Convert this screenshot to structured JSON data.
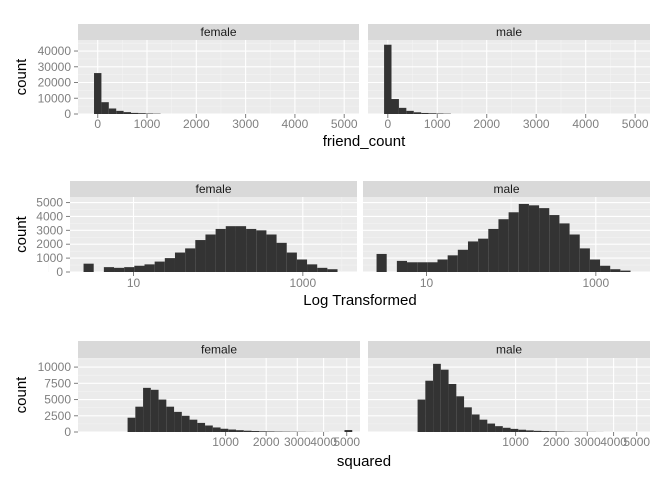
{
  "colors": {
    "panel_bg": "#ebebeb",
    "strip_bg": "#d9d9d9",
    "grid_major": "#ffffff",
    "grid_minor": "#f4f4f4",
    "bar": "#333333",
    "tick_text": "#7f7f7f"
  },
  "chart_data": [
    {
      "type": "histogram",
      "facet": "gender",
      "xlabel": "friend_count",
      "ylabel": "count",
      "xscale": "linear",
      "xlim": [
        -400,
        5300
      ],
      "ylim": [
        0,
        47000
      ],
      "xticks": [
        0,
        1000,
        2000,
        3000,
        4000,
        5000
      ],
      "xtick_labels": [
        "0",
        "1000",
        "2000",
        "3000",
        "4000",
        "5000"
      ],
      "yticks": [
        0,
        10000,
        20000,
        30000,
        40000
      ],
      "ytick_labels": [
        "0",
        "10000",
        "20000",
        "30000",
        "40000"
      ],
      "bin_edges": [
        -75,
        75,
        225,
        375,
        525,
        675,
        825,
        975,
        1125,
        1275
      ],
      "facets": [
        {
          "label": "female",
          "values": [
            26000,
            7500,
            3500,
            2000,
            1200,
            700,
            500,
            300,
            200
          ]
        },
        {
          "label": "male",
          "values": [
            44000,
            9500,
            3900,
            2000,
            1100,
            650,
            450,
            300,
            200
          ]
        }
      ]
    },
    {
      "type": "histogram",
      "facet": "gender",
      "xlabel": "Log Transformed",
      "ylabel": "count",
      "xscale": "log10",
      "xlim": [
        0.25,
        3.64
      ],
      "ylim": [
        0,
        5400
      ],
      "xticks": [
        1,
        3
      ],
      "xtick_labels": [
        "10",
        "1000"
      ],
      "yticks": [
        0,
        1000,
        2000,
        3000,
        4000,
        5000
      ],
      "ytick_labels": [
        "0",
        "1000",
        "2000",
        "3000",
        "4000",
        "5000"
      ],
      "bin_edges": [
        0.41,
        0.53,
        0.65,
        0.77,
        0.89,
        1.01,
        1.13,
        1.25,
        1.37,
        1.49,
        1.61,
        1.73,
        1.85,
        1.97,
        2.09,
        2.21,
        2.33,
        2.45,
        2.57,
        2.69,
        2.81,
        2.93,
        3.05,
        3.17,
        3.29,
        3.41
      ],
      "facets": [
        {
          "label": "female",
          "values": [
            600,
            0,
            350,
            300,
            350,
            450,
            550,
            750,
            1000,
            1400,
            1700,
            2300,
            2700,
            3100,
            3300,
            3300,
            3100,
            3000,
            2700,
            2100,
            1400,
            900,
            550,
            300,
            200
          ]
        },
        {
          "label": "male",
          "values": [
            1300,
            0,
            800,
            700,
            700,
            700,
            900,
            1200,
            1600,
            2200,
            2400,
            3100,
            3800,
            4300,
            4900,
            4800,
            4600,
            4100,
            3500,
            2700,
            1700,
            900,
            450,
            200,
            100
          ]
        }
      ]
    },
    {
      "type": "histogram",
      "facet": "gender",
      "xlabel": "squared",
      "ylabel": "count",
      "xscale": "sqrt",
      "xlim": [
        -16,
        75
      ],
      "ylim": [
        0,
        11400
      ],
      "xticks": [
        1000,
        2000,
        3000,
        4000,
        5000
      ],
      "xtick_labels": [
        "1000",
        "2000",
        "3000",
        "4000",
        "5000"
      ],
      "yticks": [
        0,
        2500,
        5000,
        7500,
        10000
      ],
      "ytick_labels": [
        "0",
        "2500",
        "5000",
        "7500",
        "10000"
      ],
      "bin_edges": [
        0,
        2.5,
        5,
        7.5,
        10,
        12.5,
        15,
        17.5,
        20,
        22.5,
        25,
        27.5,
        30,
        32.5,
        35,
        37.5,
        40,
        42.5,
        45,
        47.5,
        50,
        52.5,
        55,
        57.5,
        60,
        62.5,
        65,
        67.5,
        70,
        72.5
      ],
      "facets": [
        {
          "label": "female",
          "values": [
            2200,
            3900,
            6800,
            6500,
            5000,
            3900,
            3100,
            2500,
            1900,
            1400,
            1000,
            700,
            500,
            380,
            280,
            200,
            150,
            100,
            80,
            60,
            50,
            40,
            30,
            20,
            10,
            10,
            0,
            0,
            300,
            0
          ]
        },
        {
          "label": "male",
          "values": [
            5000,
            7900,
            10500,
            9600,
            7400,
            5500,
            3800,
            2700,
            1900,
            1300,
            900,
            650,
            480,
            350,
            250,
            180,
            140,
            100,
            70,
            50,
            40,
            30,
            20,
            10,
            0,
            0,
            0,
            0,
            0,
            0
          ]
        }
      ]
    }
  ]
}
